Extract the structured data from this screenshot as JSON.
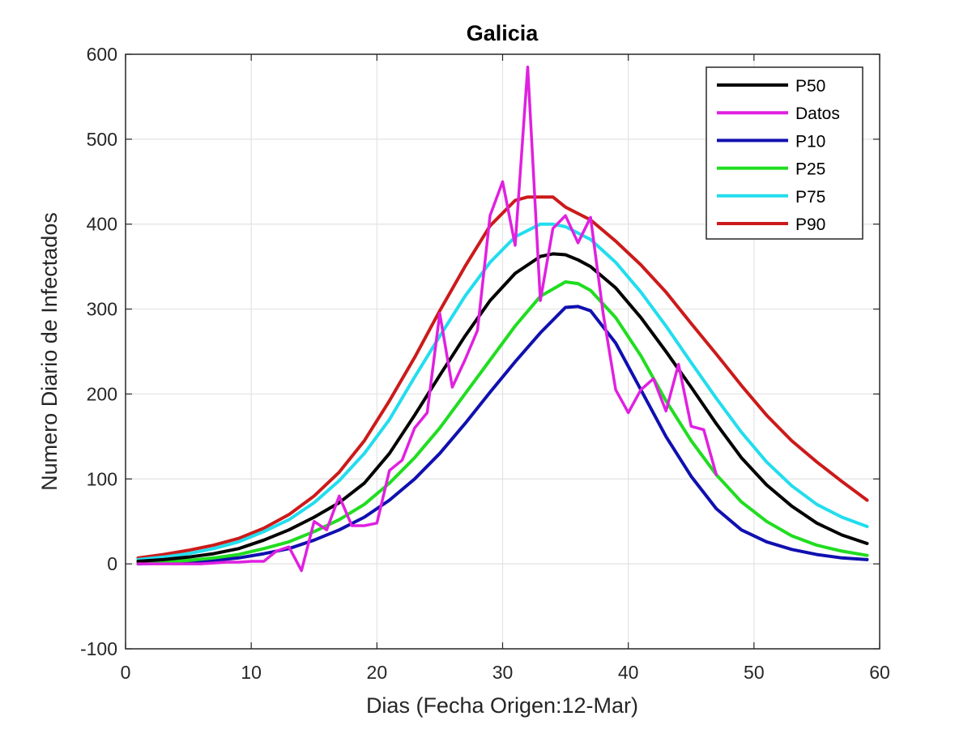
{
  "chart_data": {
    "type": "line",
    "title": "Galicia",
    "xlabel": "Dias (Fecha Origen:12-Mar)",
    "ylabel": "Numero Diario de Infectados",
    "xlim": [
      0,
      60
    ],
    "ylim": [
      -100,
      600
    ],
    "xticks": [
      0,
      10,
      20,
      30,
      40,
      50,
      60
    ],
    "yticks": [
      -100,
      0,
      100,
      200,
      300,
      400,
      500,
      600
    ],
    "xtick_labels": [
      "0",
      "10",
      "20",
      "30",
      "40",
      "50",
      "60"
    ],
    "ytick_labels": [
      "-100",
      "0",
      "100",
      "200",
      "300",
      "400",
      "500",
      "600"
    ],
    "grid": true,
    "legend_position": "top-right",
    "legend_labels": [
      "P50",
      " Datos",
      "P10",
      "P25",
      "P75",
      "P90"
    ],
    "series": [
      {
        "name": "P50",
        "color": "#000000",
        "x": [
          1,
          3,
          5,
          7,
          9,
          11,
          13,
          15,
          17,
          19,
          21,
          23,
          25,
          27,
          29,
          31,
          33,
          34,
          35,
          36,
          37,
          39,
          41,
          43,
          45,
          47,
          49,
          51,
          53,
          55,
          57,
          59
        ],
        "y": [
          3,
          5,
          8,
          12,
          18,
          28,
          40,
          55,
          72,
          95,
          130,
          175,
          222,
          268,
          310,
          342,
          362,
          365,
          364,
          358,
          350,
          325,
          290,
          250,
          208,
          165,
          125,
          93,
          68,
          48,
          34,
          24
        ]
      },
      {
        "name": "Datos",
        "color": "#e020e0",
        "x": [
          1,
          2,
          3,
          4,
          5,
          6,
          7,
          8,
          9,
          10,
          11,
          12,
          13,
          14,
          15,
          16,
          17,
          18,
          19,
          20,
          21,
          22,
          23,
          24,
          25,
          26,
          27,
          28,
          29,
          30,
          31,
          32,
          33,
          34,
          35,
          36,
          37,
          38,
          39,
          40,
          41,
          42,
          43,
          44,
          45,
          46,
          47
        ],
        "y": [
          0,
          0,
          0,
          0,
          0,
          0,
          1,
          2,
          2,
          3,
          3,
          15,
          20,
          -8,
          50,
          40,
          80,
          45,
          45,
          48,
          110,
          122,
          160,
          178,
          295,
          208,
          240,
          275,
          410,
          450,
          375,
          585,
          310,
          395,
          410,
          378,
          408,
          295,
          205,
          178,
          205,
          218,
          180,
          235,
          162,
          158,
          105
        ]
      },
      {
        "name": "P10",
        "color": "#1010b0",
        "x": [
          1,
          3,
          5,
          7,
          9,
          11,
          13,
          15,
          17,
          19,
          21,
          23,
          25,
          27,
          29,
          31,
          33,
          35,
          36,
          37,
          39,
          41,
          43,
          45,
          47,
          49,
          51,
          53,
          55,
          57,
          59
        ],
        "y": [
          0,
          1,
          2,
          4,
          7,
          12,
          18,
          28,
          40,
          55,
          75,
          100,
          130,
          165,
          202,
          238,
          272,
          302,
          303,
          298,
          260,
          205,
          150,
          103,
          65,
          40,
          26,
          17,
          11,
          7,
          5
        ]
      },
      {
        "name": "P25",
        "color": "#20dd20",
        "x": [
          1,
          3,
          5,
          7,
          9,
          11,
          13,
          15,
          17,
          19,
          21,
          23,
          25,
          27,
          29,
          31,
          33,
          35,
          36,
          37,
          39,
          41,
          43,
          45,
          47,
          49,
          51,
          53,
          55,
          57,
          59
        ],
        "y": [
          1,
          2,
          4,
          7,
          11,
          18,
          26,
          38,
          52,
          70,
          95,
          125,
          160,
          200,
          240,
          280,
          315,
          332,
          330,
          322,
          290,
          245,
          192,
          145,
          105,
          73,
          50,
          33,
          22,
          15,
          10
        ]
      },
      {
        "name": "P75",
        "color": "#22ddee",
        "x": [
          1,
          3,
          5,
          7,
          9,
          11,
          13,
          15,
          17,
          19,
          21,
          23,
          25,
          27,
          29,
          31,
          33,
          34,
          35,
          37,
          39,
          41,
          43,
          45,
          47,
          49,
          51,
          53,
          55,
          57,
          59
        ],
        "y": [
          5,
          8,
          12,
          18,
          26,
          38,
          52,
          72,
          98,
          130,
          170,
          220,
          268,
          315,
          355,
          385,
          400,
          400,
          397,
          382,
          355,
          320,
          280,
          237,
          195,
          155,
          120,
          92,
          70,
          55,
          44
        ]
      },
      {
        "name": "P90",
        "color": "#cc1a1a",
        "x": [
          1,
          3,
          5,
          7,
          9,
          11,
          13,
          15,
          17,
          19,
          21,
          23,
          25,
          27,
          29,
          31,
          32,
          34,
          35,
          37,
          39,
          41,
          43,
          45,
          47,
          49,
          51,
          53,
          55,
          57,
          59
        ],
        "y": [
          7,
          11,
          16,
          22,
          30,
          42,
          58,
          80,
          108,
          145,
          192,
          243,
          298,
          350,
          398,
          428,
          432,
          432,
          420,
          405,
          380,
          352,
          320,
          283,
          247,
          210,
          175,
          145,
          120,
          97,
          75
        ]
      }
    ]
  }
}
